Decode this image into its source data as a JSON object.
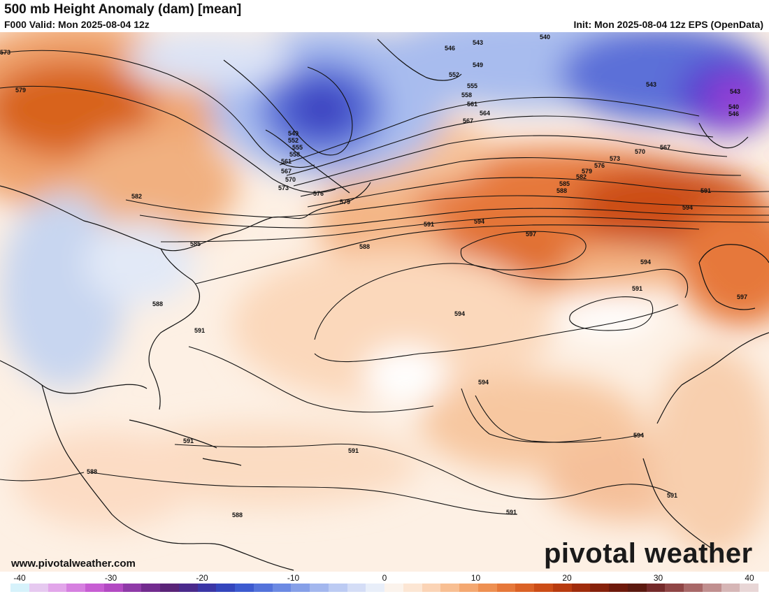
{
  "header": {
    "title": "500 mb Height Anomaly (dam) [mean]",
    "valid": "F000 Valid: Mon 2025-08-04 12z",
    "init": "Init: Mon 2025-08-04 12z EPS (OpenData)"
  },
  "footer": {
    "website": "www.pivotalweather.com",
    "brand": "pivotal weather"
  },
  "colorbar": {
    "ticks": [
      "-40",
      "-30",
      "-20",
      "-10",
      "0",
      "10",
      "20",
      "30",
      "40"
    ],
    "colors": [
      "#d6f2fb",
      "#e6c9f0",
      "#e2a6ea",
      "#d680e0",
      "#c75ed3",
      "#b34ac3",
      "#8f3aa8",
      "#722b8f",
      "#5a2478",
      "#4a2a8c",
      "#3b36a6",
      "#3446bd",
      "#3d5bd0",
      "#5473db",
      "#6c8ae3",
      "#86a0e8",
      "#a3b7ee",
      "#bccbf3",
      "#d4ddf6",
      "#e8eef9",
      "#fbf3ec",
      "#fce6d4",
      "#fbd4b6",
      "#f8bf93",
      "#f4a871",
      "#ee9052",
      "#e6783a",
      "#db6226",
      "#cc4d17",
      "#b83b0f",
      "#a02c0c",
      "#86210b",
      "#6e1a0c",
      "#5c1a10",
      "#742a2a",
      "#8f4545",
      "#a86868",
      "#c08f8f",
      "#d6b6b6",
      "#e8d6d6"
    ]
  },
  "map": {
    "contour_labels": [
      "573",
      "579",
      "546",
      "543",
      "549",
      "552",
      "555",
      "558",
      "561",
      "564",
      "567",
      "540",
      "543",
      "543",
      "540",
      "546",
      "549",
      "552",
      "555",
      "558",
      "561",
      "567",
      "570",
      "573",
      "576",
      "579",
      "582",
      "585",
      "588",
      "570",
      "567",
      "573",
      "576",
      "579",
      "582",
      "585",
      "588",
      "591",
      "594",
      "597",
      "591",
      "594",
      "594",
      "591",
      "594",
      "588",
      "591",
      "588",
      "591",
      "594",
      "594",
      "591",
      "591",
      "588",
      "591",
      "597",
      "591"
    ],
    "colors": {
      "ocean_neutral": "#fdf3ea",
      "warm_light": "#f9d8bb",
      "warm_mid": "#f1a772",
      "warm_strong": "#d8631f",
      "cold_light": "#bfd0ee",
      "cold_mid": "#6f8ae0",
      "cold_strong": "#3b3fc0",
      "purple": "#8f3ad0"
    }
  }
}
